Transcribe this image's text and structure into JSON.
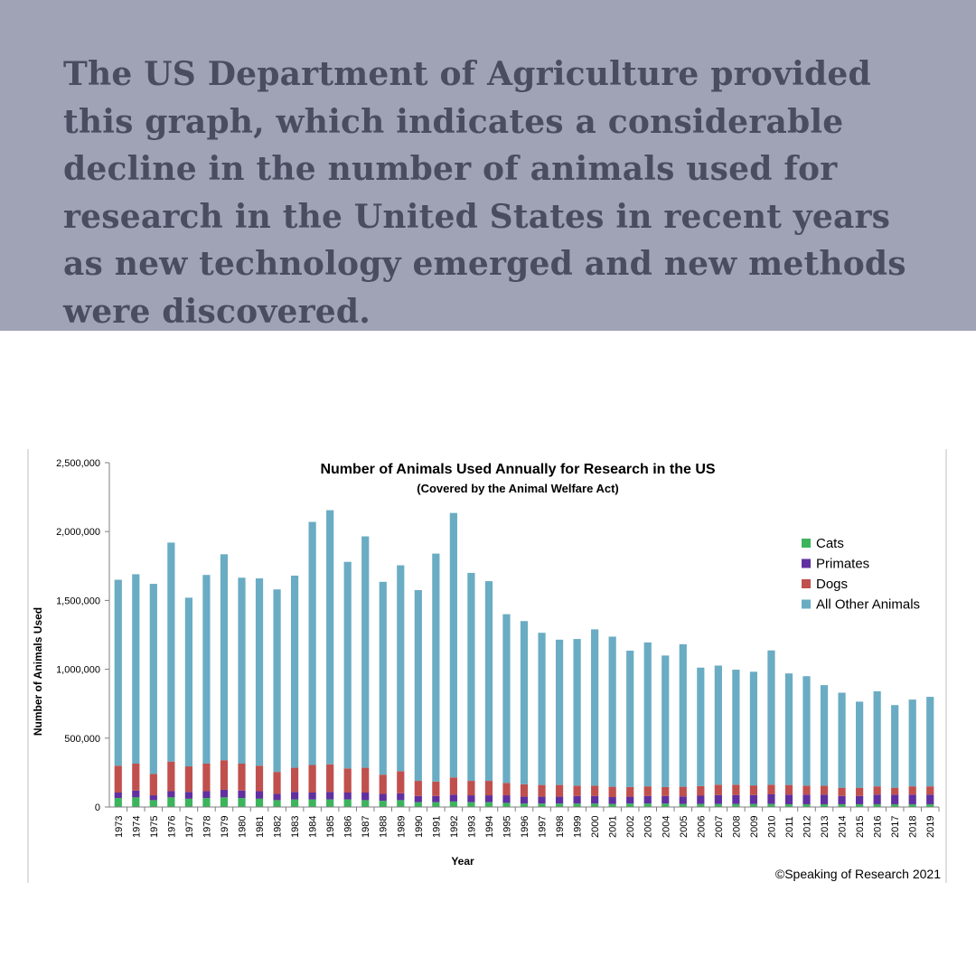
{
  "banner": {
    "text": "The US Department of Agriculture provided this graph, which indicates a considerable decline in the number of animals used for research in the United States in recent years as new technology emerged and new methods were discovered.",
    "background": "#a0a3b5",
    "text_color": "#4a4d60"
  },
  "chart_data": {
    "type": "bar",
    "stacked": true,
    "title": "Number of Animals Used Annually for Research in the US",
    "subtitle": "(Covered by the Animal Welfare Act)",
    "xlabel": "Year",
    "ylabel": "Number of Animals Used",
    "ylim": [
      0,
      2500000
    ],
    "yticks": [
      0,
      500000,
      1000000,
      1500000,
      2000000,
      2500000
    ],
    "ytick_labels": [
      "0",
      "500,000",
      "1,000,000",
      "1,500,000",
      "2,000,000",
      "2,500,000"
    ],
    "legend_position": "top-right",
    "credit": "©Speaking of Research 2021",
    "categories": [
      "1973",
      "1974",
      "1975",
      "1976",
      "1977",
      "1978",
      "1979",
      "1980",
      "1981",
      "1982",
      "1983",
      "1984",
      "1985",
      "1986",
      "1987",
      "1988",
      "1989",
      "1990",
      "1991",
      "1992",
      "1993",
      "1994",
      "1995",
      "1996",
      "1997",
      "1998",
      "1999",
      "2000",
      "2001",
      "2002",
      "2003",
      "2004",
      "2005",
      "2006",
      "2007",
      "2008",
      "2009",
      "2010",
      "2011",
      "2012",
      "2013",
      "2014",
      "2015",
      "2016",
      "2017",
      "2018",
      "2019"
    ],
    "series": [
      {
        "name": "Cats",
        "color": "#3cb45c",
        "values": [
          65000,
          70000,
          50000,
          70000,
          60000,
          65000,
          70000,
          65000,
          60000,
          50000,
          55000,
          55000,
          55000,
          55000,
          50000,
          45000,
          50000,
          35000,
          35000,
          40000,
          35000,
          35000,
          30000,
          25000,
          25000,
          25000,
          25000,
          25000,
          22000,
          25000,
          25000,
          25000,
          22000,
          22000,
          22000,
          22000,
          22000,
          22000,
          20000,
          20000,
          20000,
          20000,
          20000,
          20000,
          20000,
          20000,
          20000
        ]
      },
      {
        "name": "Primates",
        "color": "#6030a0",
        "values": [
          40000,
          50000,
          35000,
          45000,
          50000,
          50000,
          55000,
          55000,
          55000,
          45000,
          55000,
          50000,
          55000,
          50000,
          55000,
          50000,
          50000,
          45000,
          45000,
          50000,
          50000,
          50000,
          55000,
          50000,
          50000,
          50000,
          55000,
          55000,
          50000,
          50000,
          55000,
          55000,
          55000,
          60000,
          65000,
          65000,
          65000,
          70000,
          70000,
          70000,
          70000,
          60000,
          60000,
          70000,
          70000,
          70000,
          70000
        ]
      },
      {
        "name": "Dogs",
        "color": "#c0504d",
        "values": [
          195000,
          195000,
          155000,
          215000,
          185000,
          200000,
          215000,
          195000,
          185000,
          160000,
          175000,
          200000,
          200000,
          175000,
          180000,
          140000,
          160000,
          110000,
          105000,
          125000,
          105000,
          105000,
          90000,
          90000,
          85000,
          85000,
          75000,
          75000,
          75000,
          70000,
          70000,
          65000,
          70000,
          70000,
          75000,
          75000,
          70000,
          70000,
          70000,
          65000,
          65000,
          60000,
          60000,
          60000,
          50000,
          60000,
          60000
        ]
      },
      {
        "name": "All Other Animals",
        "color": "#6aacc3",
        "values": [
          1350000,
          1375000,
          1380000,
          1590000,
          1225000,
          1370000,
          1495000,
          1350000,
          1360000,
          1325000,
          1395000,
          1765000,
          1845000,
          1500000,
          1680000,
          1400000,
          1495000,
          1385000,
          1655000,
          1920000,
          1510000,
          1450000,
          1225000,
          1185000,
          1105000,
          1055000,
          1065000,
          1135000,
          1090000,
          990000,
          1045000,
          955000,
          1035000,
          860000,
          865000,
          835000,
          825000,
          975000,
          810000,
          795000,
          730000,
          690000,
          625000,
          690000,
          600000,
          630000,
          650000
        ]
      }
    ]
  }
}
